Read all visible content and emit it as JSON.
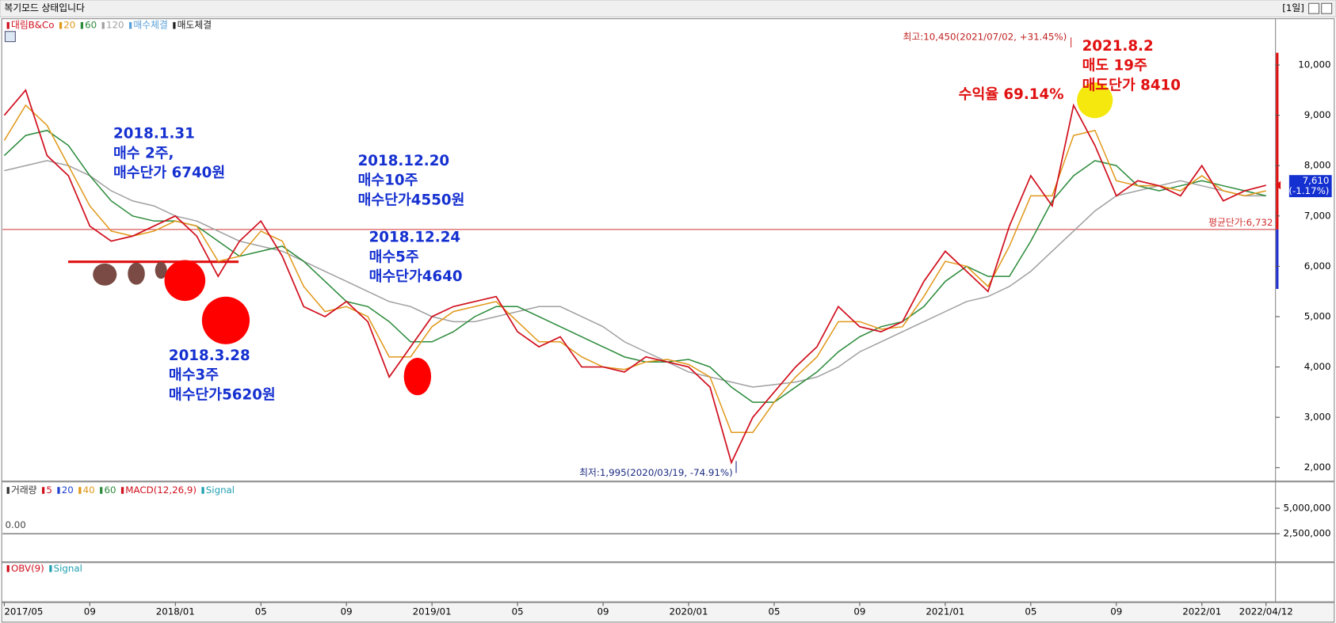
{
  "header": {
    "title": "복기모드 상태입니다",
    "button": "[1일]"
  },
  "chart_data": [
    {
      "type": "line",
      "categories": [
        "2017/05",
        null,
        null,
        null,
        "09",
        null,
        null,
        null,
        "2018/01",
        null,
        null,
        null,
        "05",
        null,
        null,
        null,
        "09",
        null,
        null,
        null,
        "2019/01",
        null,
        null,
        null,
        "05",
        null,
        null,
        null,
        "09",
        null,
        null,
        null,
        "2020/01",
        null,
        null,
        null,
        "05",
        null,
        null,
        null,
        "09",
        null,
        null,
        null,
        "2021/01",
        null,
        null,
        null,
        "05",
        null,
        null,
        null,
        "09",
        null,
        null,
        null,
        "2022/01",
        null,
        null,
        "2022/04/12"
      ],
      "series": [
        {
          "name": "대림B&Co",
          "color": "#d0101e",
          "values": [
            9000,
            9500,
            8200,
            7800,
            6800,
            6500,
            6600,
            6800,
            7000,
            6600,
            5800,
            6500,
            6900,
            6200,
            5200,
            5000,
            5300,
            4900,
            3800,
            4400,
            5000,
            5200,
            5300,
            5400,
            4700,
            4400,
            4600,
            4000,
            4000,
            3900,
            4200,
            4100,
            4000,
            3600,
            2100,
            3000,
            3500,
            4000,
            4400,
            5200,
            4800,
            4700,
            4900,
            5700,
            6300,
            5900,
            5500,
            6800,
            7800,
            7200,
            9200,
            8400,
            7400,
            7700,
            7600,
            7400,
            8000,
            7300,
            7500,
            7610
          ]
        },
        {
          "name": "20",
          "color": "#e0981a",
          "values": [
            8500,
            9200,
            8800,
            8000,
            7200,
            6700,
            6600,
            6700,
            6900,
            6800,
            6100,
            6200,
            6700,
            6500,
            5600,
            5100,
            5200,
            5000,
            4200,
            4200,
            4800,
            5100,
            5200,
            5300,
            4900,
            4500,
            4500,
            4200,
            4000,
            3950,
            4100,
            4150,
            4050,
            3800,
            2700,
            2700,
            3300,
            3800,
            4200,
            4900,
            4900,
            4750,
            4800,
            5400,
            6100,
            6000,
            5600,
            6400,
            7400,
            7400,
            8600,
            8700,
            7700,
            7600,
            7600,
            7500,
            7800,
            7500,
            7400,
            7500
          ]
        },
        {
          "name": "60",
          "color": "#2a8a3a",
          "values": [
            8200,
            8600,
            8700,
            8400,
            7800,
            7300,
            7000,
            6900,
            6900,
            6800,
            6500,
            6200,
            6300,
            6400,
            6100,
            5700,
            5300,
            5200,
            4900,
            4500,
            4500,
            4700,
            5000,
            5200,
            5200,
            5000,
            4800,
            4600,
            4400,
            4200,
            4100,
            4100,
            4150,
            4000,
            3600,
            3300,
            3300,
            3600,
            3900,
            4300,
            4600,
            4800,
            4900,
            5200,
            5700,
            6000,
            5800,
            5800,
            6500,
            7300,
            7800,
            8100,
            8000,
            7600,
            7500,
            7600,
            7700,
            7600,
            7500,
            7400
          ]
        },
        {
          "name": "120",
          "color": "#a0a0a0",
          "values": [
            7900,
            8000,
            8100,
            8000,
            7800,
            7500,
            7300,
            7200,
            7000,
            6900,
            6700,
            6500,
            6400,
            6300,
            6100,
            5900,
            5700,
            5500,
            5300,
            5200,
            5000,
            4900,
            4900,
            5000,
            5100,
            5200,
            5200,
            5000,
            4800,
            4500,
            4300,
            4100,
            3900,
            3800,
            3700,
            3600,
            3650,
            3700,
            3800,
            4000,
            4300,
            4500,
            4700,
            4900,
            5100,
            5300,
            5400,
            5600,
            5900,
            6300,
            6700,
            7100,
            7400,
            7500,
            7600,
            7700,
            7600,
            7500,
            7400,
            7400
          ]
        }
      ],
      "legend_extra": [
        {
          "name": "매수체결",
          "color": "#5aa0d8"
        },
        {
          "name": "매도체결",
          "color": "#202020"
        }
      ],
      "ylim": [
        1750,
        10700
      ],
      "yticks": [
        {
          "value": 2000,
          "label": "2,000"
        },
        {
          "value": 3000,
          "label": "3,000"
        },
        {
          "value": 4000,
          "label": "4,000"
        },
        {
          "value": 5000,
          "label": "5,000"
        },
        {
          "value": 6000,
          "label": "6,000"
        },
        {
          "value": 7000,
          "label": "7,000"
        },
        {
          "value": 8000,
          "label": "8,000"
        },
        {
          "value": 9000,
          "label": "9,000"
        },
        {
          "value": 10000,
          "label": "10,000"
        }
      ],
      "high": {
        "value": 10450,
        "label": "최고:10,450(2021/07/02, +31.45%)"
      },
      "low": {
        "value": 1995,
        "label": "최저:1,995(2020/03/19, -74.91%)"
      },
      "avg": {
        "value": 6732,
        "label": "평균단가:6,732"
      },
      "last": {
        "value": 7610,
        "label": "7,610",
        "change": "(-1.17%)"
      },
      "notes": [
        {
          "color": "#1530d0",
          "lines": [
            "2018.1.31",
            "매수 2주,",
            "매수단가 6740원"
          ]
        },
        {
          "color": "#1530d0",
          "lines": [
            "2018.12.20",
            "매수10주",
            "매수단가4550원"
          ]
        },
        {
          "color": "#1530d0",
          "lines": [
            "2018.12.24",
            "매수5주",
            "매수단가4640"
          ]
        },
        {
          "color": "#1530d0",
          "lines": [
            "2018.3.28",
            "매수3주",
            "매수단가5620원"
          ]
        },
        {
          "color": "#e01010",
          "lines": [
            "2021.8.2",
            "매도 19주",
            "매도단가 8410"
          ]
        },
        {
          "color": "#e01010",
          "lines": [
            "수익율 69.14%"
          ]
        }
      ]
    },
    {
      "type": "indicator",
      "legend": [
        {
          "name": "거래량",
          "color": "#333333"
        },
        {
          "name": "5",
          "color": "#d0101e"
        },
        {
          "name": "20",
          "color": "#2040d0"
        },
        {
          "name": "40",
          "color": "#e0981a"
        },
        {
          "name": "60",
          "color": "#2a8a3a"
        },
        {
          "name": "MACD(12,26,9)",
          "color": "#d0101e"
        },
        {
          "name": "Signal",
          "color": "#20a0b0"
        }
      ],
      "ylim": [
        -170000,
        7330000
      ],
      "yticks": [
        {
          "value": 2500000,
          "label": "2,500,000"
        },
        {
          "value": 5000000,
          "label": "5,000,000"
        }
      ],
      "zero_label": "0.00"
    },
    {
      "type": "indicator",
      "legend": [
        {
          "name": "OBV(9)",
          "color": "#d0101e"
        },
        {
          "name": "Signal",
          "color": "#20a0b0"
        }
      ]
    }
  ]
}
